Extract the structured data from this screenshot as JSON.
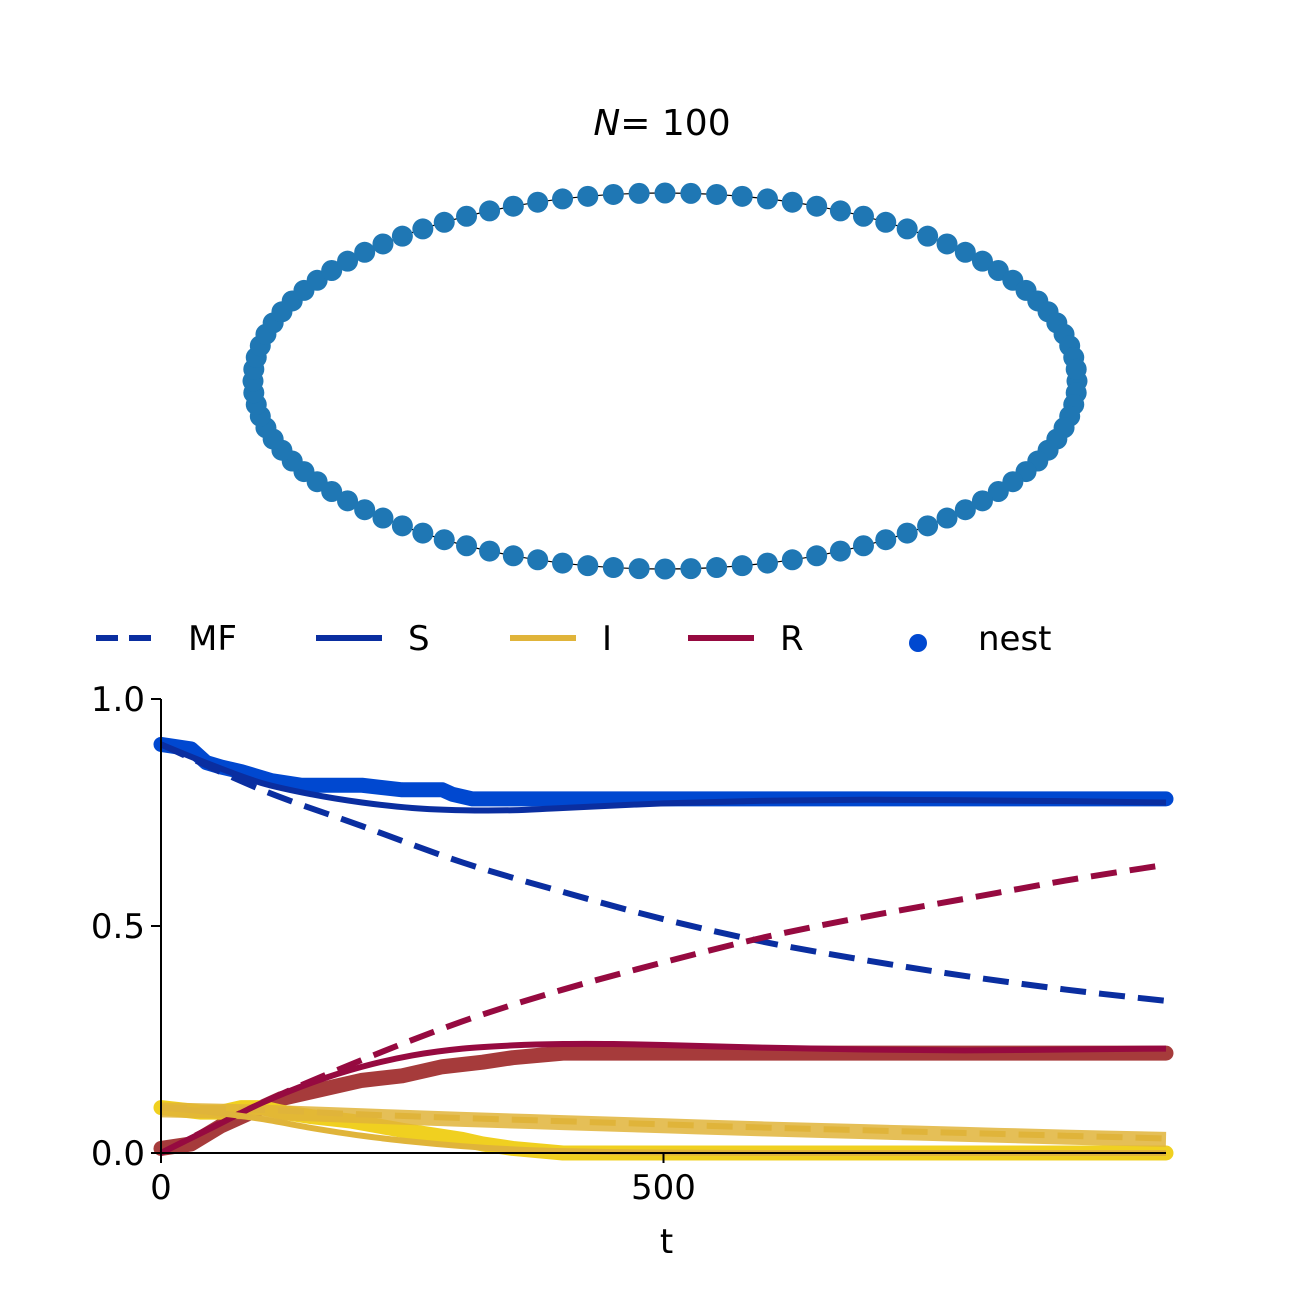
{
  "chart_data": [
    {
      "type": "network",
      "title": "N = 100",
      "title_var": "N",
      "title_eq": "= 100",
      "node_count": 100,
      "layout": "ring",
      "node_color": "#1f77b4"
    },
    {
      "type": "line",
      "xlabel": "t",
      "ylabel": "",
      "xlim": [
        0,
        1000
      ],
      "ylim": [
        0,
        1
      ],
      "xticks": [
        0,
        500
      ],
      "yticks": [
        0.0,
        0.5,
        1.0
      ],
      "xtick_labels": [
        "0",
        "500"
      ],
      "ytick_labels": [
        "0.0",
        "0.5",
        "1.0"
      ],
      "legend_placement": "top",
      "legend": [
        {
          "label": "MF",
          "style": "dashed",
          "color": "#0a2ea0"
        },
        {
          "label": "S",
          "style": "solid",
          "color": "#0a2ea0"
        },
        {
          "label": "I",
          "style": "solid",
          "color": "#e0b43a"
        },
        {
          "label": "R",
          "style": "solid",
          "color": "#960a40"
        },
        {
          "label": "nest",
          "style": "dot",
          "color": "#0048d0"
        }
      ],
      "series": [
        {
          "kind": "mf",
          "compartment": "S",
          "color": "#0a2ea0",
          "x": [
            0,
            100,
            200,
            300,
            400,
            500,
            600,
            700,
            800,
            900,
            1000
          ],
          "y": [
            0.9,
            0.8,
            0.72,
            0.64,
            0.575,
            0.515,
            0.465,
            0.425,
            0.39,
            0.36,
            0.335
          ]
        },
        {
          "kind": "mf",
          "compartment": "R",
          "color": "#960a40",
          "x": [
            0,
            100,
            200,
            300,
            400,
            500,
            600,
            700,
            800,
            900,
            1000
          ],
          "y": [
            0.0,
            0.11,
            0.205,
            0.29,
            0.36,
            0.42,
            0.475,
            0.52,
            0.56,
            0.6,
            0.635
          ]
        },
        {
          "kind": "mf",
          "compartment": "I",
          "color": "#e0b43a",
          "x": [
            0,
            100,
            200,
            300,
            400,
            500,
            600,
            700,
            800,
            900,
            1000
          ],
          "y": [
            0.1,
            0.095,
            0.085,
            0.077,
            0.07,
            0.063,
            0.056,
            0.05,
            0.044,
            0.038,
            0.032
          ]
        },
        {
          "kind": "model",
          "compartment": "S",
          "color": "#0a2ea0",
          "x": [
            0,
            50,
            100,
            150,
            200,
            250,
            300,
            350,
            400,
            500,
            600,
            700,
            800,
            900,
            1000
          ],
          "y": [
            0.9,
            0.855,
            0.815,
            0.79,
            0.772,
            0.76,
            0.755,
            0.755,
            0.76,
            0.77,
            0.776,
            0.778,
            0.777,
            0.775,
            0.772
          ]
        },
        {
          "kind": "model",
          "compartment": "R",
          "color": "#960a40",
          "x": [
            0,
            50,
            100,
            150,
            200,
            250,
            300,
            350,
            400,
            450,
            500,
            600,
            700,
            800,
            900,
            1000
          ],
          "y": [
            0.0,
            0.055,
            0.11,
            0.155,
            0.19,
            0.215,
            0.23,
            0.237,
            0.24,
            0.24,
            0.238,
            0.232,
            0.228,
            0.226,
            0.228,
            0.23
          ]
        },
        {
          "kind": "model",
          "compartment": "I",
          "color": "#e0b43a",
          "x": [
            0,
            50,
            100,
            150,
            200,
            250,
            300,
            350,
            400,
            450,
            500,
            600,
            700,
            800,
            900,
            1000
          ],
          "y": [
            0.1,
            0.09,
            0.075,
            0.055,
            0.038,
            0.025,
            0.015,
            0.008,
            0.004,
            0.002,
            0.001,
            0.0,
            0.0,
            0.0,
            0.0,
            0.0
          ]
        },
        {
          "kind": "nest",
          "compartment": "S",
          "color": "#0048d0",
          "x": [
            0,
            30,
            45,
            60,
            80,
            110,
            140,
            200,
            240,
            280,
            290,
            310,
            400,
            500,
            600,
            700,
            800,
            900,
            1000
          ],
          "y": [
            0.9,
            0.89,
            0.86,
            0.85,
            0.84,
            0.82,
            0.81,
            0.81,
            0.8,
            0.8,
            0.79,
            0.78,
            0.78,
            0.78,
            0.78,
            0.78,
            0.78,
            0.78,
            0.78
          ]
        },
        {
          "kind": "nest",
          "compartment": "R",
          "color": "#a63b3b",
          "x": [
            0,
            30,
            60,
            90,
            120,
            160,
            200,
            240,
            280,
            320,
            350,
            400,
            500,
            600,
            700,
            800,
            900,
            1000
          ],
          "y": [
            0.01,
            0.02,
            0.06,
            0.09,
            0.12,
            0.14,
            0.16,
            0.17,
            0.19,
            0.2,
            0.21,
            0.22,
            0.22,
            0.22,
            0.22,
            0.22,
            0.22,
            0.22
          ]
        },
        {
          "kind": "nest",
          "compartment": "I",
          "color": "#f0d020",
          "x": [
            0,
            40,
            60,
            80,
            100,
            120,
            150,
            190,
            240,
            270,
            300,
            320,
            350,
            400,
            500,
            600,
            700,
            800,
            900,
            1000
          ],
          "y": [
            0.1,
            0.09,
            0.09,
            0.1,
            0.1,
            0.09,
            0.08,
            0.07,
            0.05,
            0.04,
            0.03,
            0.02,
            0.01,
            0.0,
            0.0,
            0.0,
            0.0,
            0.0,
            0.0,
            0.0
          ]
        },
        {
          "kind": "nest_mf",
          "compartment": "I",
          "color": "#e0b43a",
          "x": [
            0,
            100,
            200,
            300,
            400,
            500,
            600,
            700,
            800,
            900,
            1000
          ],
          "y": [
            0.095,
            0.09,
            0.082,
            0.074,
            0.067,
            0.06,
            0.053,
            0.047,
            0.041,
            0.035,
            0.03
          ]
        }
      ]
    }
  ]
}
